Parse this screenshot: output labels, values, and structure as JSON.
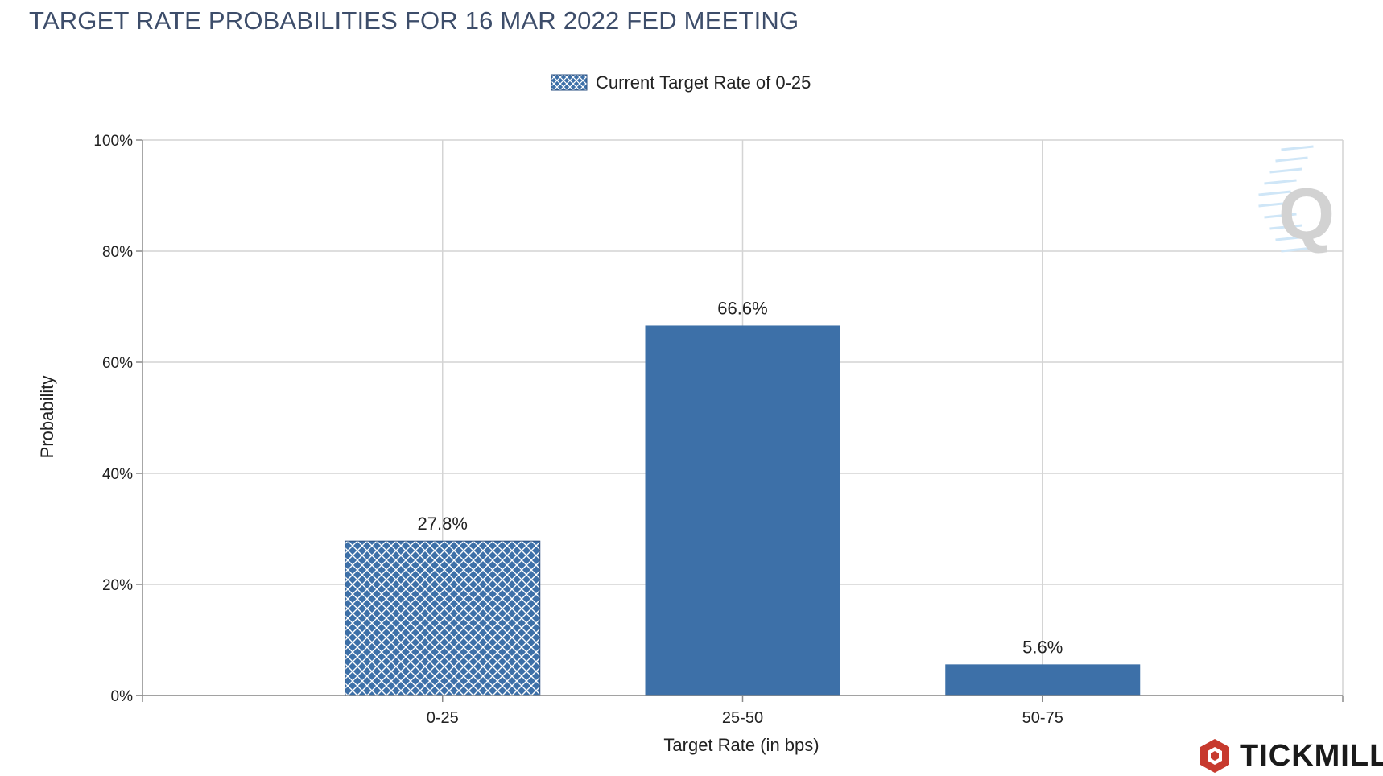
{
  "title": "TARGET RATE PROBABILITIES FOR 16 MAR 2022 FED MEETING",
  "chart_data": {
    "type": "bar",
    "categories": [
      "0-25",
      "25-50",
      "50-75"
    ],
    "values": [
      27.8,
      66.6,
      5.6
    ],
    "value_labels": [
      "27.8%",
      "66.6%",
      "5.6%"
    ],
    "current_category": "0-25",
    "legend": {
      "label": "Current Target Rate of 0-25",
      "placement": "top-center"
    },
    "xlabel": "Target Rate (in bps)",
    "ylabel": "Probability",
    "ylim": [
      0,
      100
    ],
    "yticks": [
      0,
      20,
      40,
      60,
      80,
      100
    ],
    "ytick_labels": [
      "0%",
      "20%",
      "40%",
      "60%",
      "80%",
      "100%"
    ],
    "grid": true,
    "bar_color": "#3d70a8"
  },
  "watermark": {
    "letter": "Q"
  },
  "brand": {
    "name": "TICKMILL",
    "logo_color": "#c73a2e"
  }
}
